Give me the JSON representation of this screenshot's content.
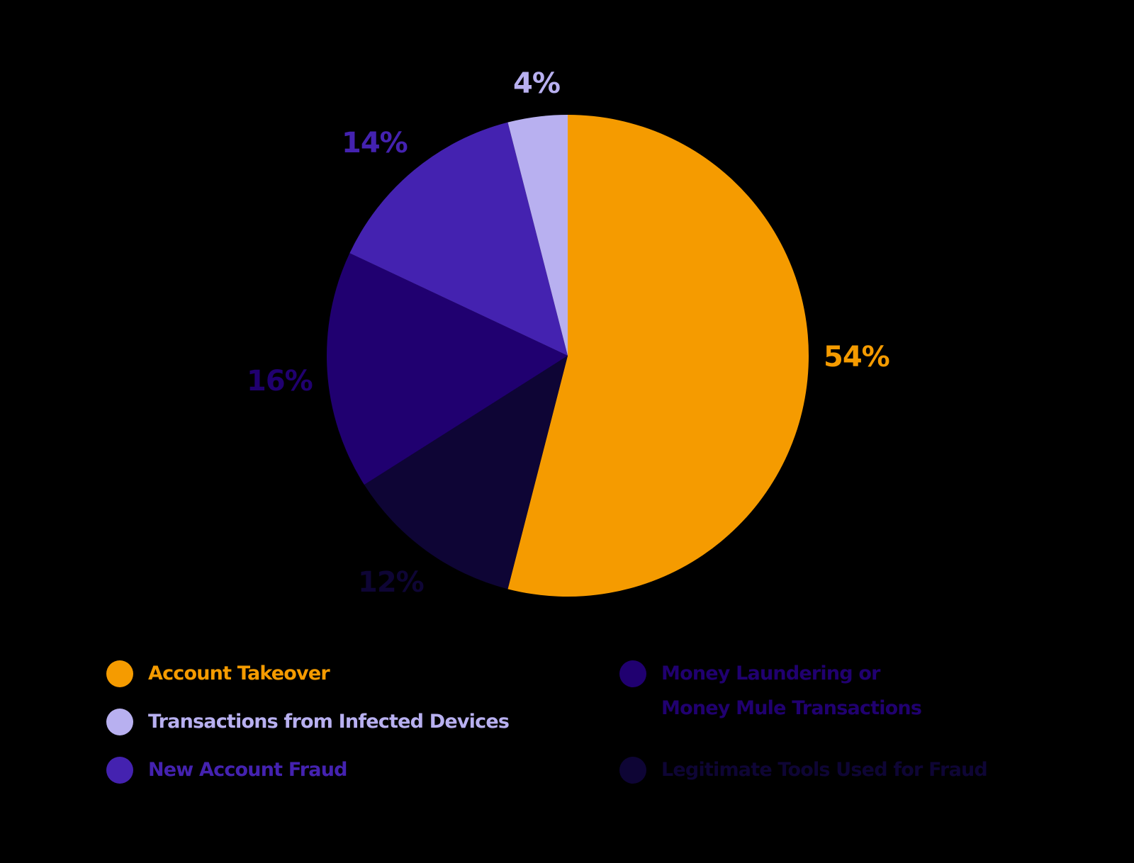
{
  "chart_data": {
    "type": "pie",
    "title": "",
    "start_angle_deg": 0,
    "direction": "clockwise",
    "slices": [
      {
        "label": "Account Takeover",
        "value": 54,
        "display": "54%",
        "color": "#F59B00"
      },
      {
        "label": "Legitimate Tools Used for Fraud",
        "value": 12,
        "display": "12%",
        "color": "#0E0535"
      },
      {
        "label": "Money Laundering or Money Mule Transactions",
        "value": 16,
        "display": "16%",
        "color": "#200070"
      },
      {
        "label": "New Account Fraud",
        "value": 14,
        "display": "14%",
        "color": "#4422B0"
      },
      {
        "label": "Transactions from Infected Devices",
        "value": 4,
        "display": "4%",
        "color": "#B8B0F0"
      }
    ],
    "legend_position": "bottom",
    "background": "#000000"
  },
  "labels": {
    "account_takeover": "54%",
    "legit_tools": "12%",
    "money_laundering": "16%",
    "new_account": "14%",
    "infected_devices": "4%"
  },
  "legend": {
    "left": [
      {
        "text": "Account Takeover",
        "color": "#F59B00"
      },
      {
        "text": "Transactions from Infected Devices",
        "color": "#B8B0F0"
      },
      {
        "text": "New Account Fraud",
        "color": "#4422B0"
      }
    ],
    "right": [
      {
        "line1": "Money Laundering or",
        "line2": "Money Mule Transactions",
        "color": "#200070"
      },
      {
        "text": "Legitimate Tools Used for Fraud",
        "color": "#0E0535"
      }
    ]
  }
}
